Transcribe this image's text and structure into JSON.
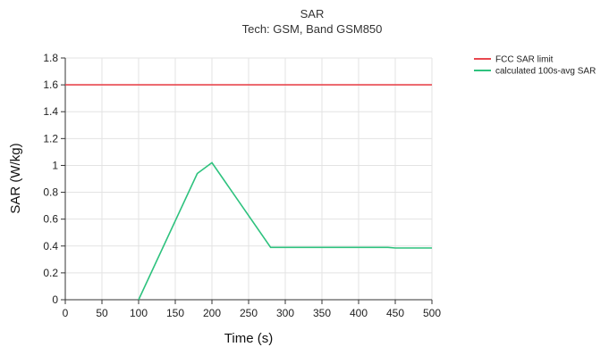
{
  "chart_data": {
    "type": "line",
    "title": "SAR",
    "subtitle": "Tech: GSM, Band GSM850",
    "xlabel": "Time (s)",
    "ylabel": "SAR (W/kg)",
    "xlim": [
      0,
      500
    ],
    "ylim": [
      0,
      1.8
    ],
    "x_ticks": [
      0,
      50,
      100,
      150,
      200,
      250,
      300,
      350,
      400,
      450,
      500
    ],
    "y_ticks": [
      0,
      0.2,
      0.4,
      0.6,
      0.8,
      1,
      1.2,
      1.4,
      1.6,
      1.8
    ],
    "x_tick_labels": [
      "0",
      "50",
      "100",
      "150",
      "200",
      "250",
      "300",
      "350",
      "400",
      "450",
      "500"
    ],
    "y_tick_labels": [
      "0",
      "0.2",
      "0.4",
      "0.6",
      "0.8",
      "1",
      "1.2",
      "1.4",
      "1.6",
      "1.8"
    ],
    "grid": true,
    "legend_position": "top-right",
    "series": [
      {
        "name": "FCC SAR limit",
        "color": "#e8474e",
        "points": [
          [
            0,
            1.6
          ],
          [
            500,
            1.6
          ]
        ]
      },
      {
        "name": "calculated 100s-avg SAR",
        "color": "#2ec27e",
        "points": [
          [
            100,
            0
          ],
          [
            180,
            0.94
          ],
          [
            200,
            1.02
          ],
          [
            280,
            0.39
          ],
          [
            440,
            0.39
          ],
          [
            450,
            0.385
          ],
          [
            500,
            0.385
          ]
        ]
      }
    ]
  }
}
